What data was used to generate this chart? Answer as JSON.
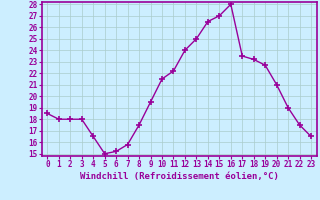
{
  "hours": [
    0,
    1,
    2,
    3,
    4,
    5,
    6,
    7,
    8,
    9,
    10,
    11,
    12,
    13,
    14,
    15,
    16,
    17,
    18,
    19,
    20,
    21,
    22,
    23
  ],
  "values": [
    18.5,
    18.0,
    18.0,
    18.0,
    16.5,
    15.0,
    15.2,
    15.8,
    17.5,
    19.5,
    21.5,
    22.2,
    24.0,
    25.0,
    26.5,
    27.0,
    28.0,
    23.5,
    23.2,
    22.7,
    21.0,
    19.0,
    17.5,
    16.5
  ],
  "line_color": "#990099",
  "marker_color": "#990099",
  "bg_color": "#cceeff",
  "plot_bg_color": "#cceeff",
  "grid_color": "#aacccc",
  "xlabel": "Windchill (Refroidissement éolien,°C)",
  "ylim_min": 15,
  "ylim_max": 28,
  "xlim_min": 0,
  "xlim_max": 23,
  "yticks": [
    15,
    16,
    17,
    18,
    19,
    20,
    21,
    22,
    23,
    24,
    25,
    26,
    27,
    28
  ],
  "xtick_labels": [
    "0",
    "1",
    "2",
    "3",
    "4",
    "5",
    "6",
    "7",
    "8",
    "9",
    "10",
    "11",
    "12",
    "13",
    "14",
    "15",
    "16",
    "17",
    "18",
    "19",
    "20",
    "21",
    "22",
    "23"
  ],
  "tick_color": "#990099",
  "spine_color": "#990099",
  "font_color": "#990099",
  "font_size": 5.5,
  "xlabel_font_size": 6.5,
  "marker_size": 4,
  "line_width": 1.0,
  "bottom_bar_color": "#9900aa"
}
